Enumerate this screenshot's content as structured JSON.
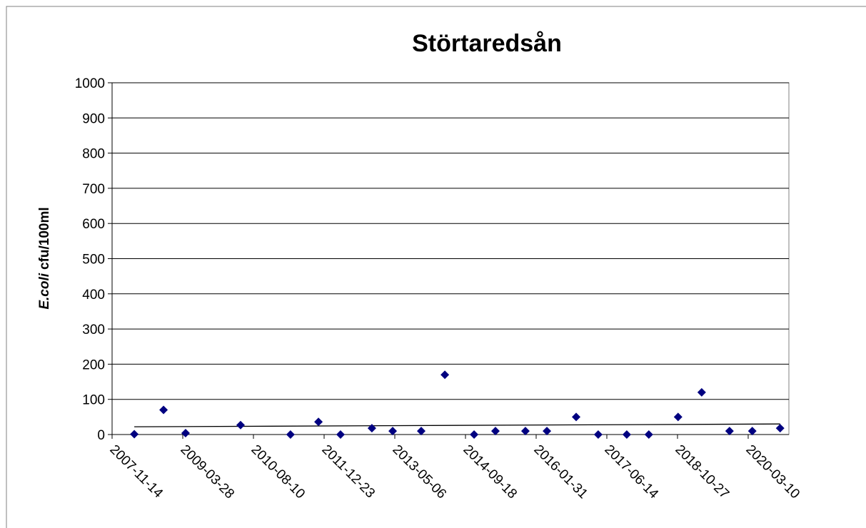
{
  "chart_data": {
    "type": "scatter",
    "title": "Störtaredsån",
    "ylabel": [
      "E.coli",
      "cfu/100ml"
    ],
    "x": [
      "2008-04-19",
      "2008-11-12",
      "2009-04-17",
      "2010-05-11",
      "2011-04-29",
      "2011-11-13",
      "2012-04-17",
      "2012-11-25",
      "2013-04-21",
      "2013-11-09",
      "2014-04-25",
      "2014-11-18",
      "2015-04-18",
      "2015-11-16",
      "2016-04-16",
      "2016-11-09",
      "2017-04-14",
      "2017-11-02",
      "2018-04-07",
      "2018-10-31",
      "2019-04-16",
      "2019-10-30",
      "2020-04-08",
      "2020-10-22"
    ],
    "series": [
      {
        "color": "#000080",
        "values": [
          1,
          70,
          4,
          27,
          0,
          36,
          0,
          18,
          10,
          10,
          170,
          0,
          10,
          10,
          10,
          50,
          0,
          0,
          0,
          50,
          120,
          10,
          10,
          18
        ]
      }
    ],
    "trendline": {
      "x": [
        "2008-04-19",
        "2020-10-22"
      ],
      "values": [
        22,
        30
      ],
      "color": "#000000"
    },
    "xlim": [
      "2007-11-14",
      "2020-12-23"
    ],
    "xticks": [
      "2007-11-14",
      "2009-03-28",
      "2010-08-10",
      "2011-12-23",
      "2013-05-06",
      "2014-09-18",
      "2016-01-31",
      "2017-06-14",
      "2018-10-27",
      "2020-03-10"
    ],
    "ylim": [
      0,
      1000
    ],
    "yticks": [
      0,
      100,
      200,
      300,
      400,
      500,
      600,
      700,
      800,
      900,
      1000
    ],
    "grid": true
  }
}
